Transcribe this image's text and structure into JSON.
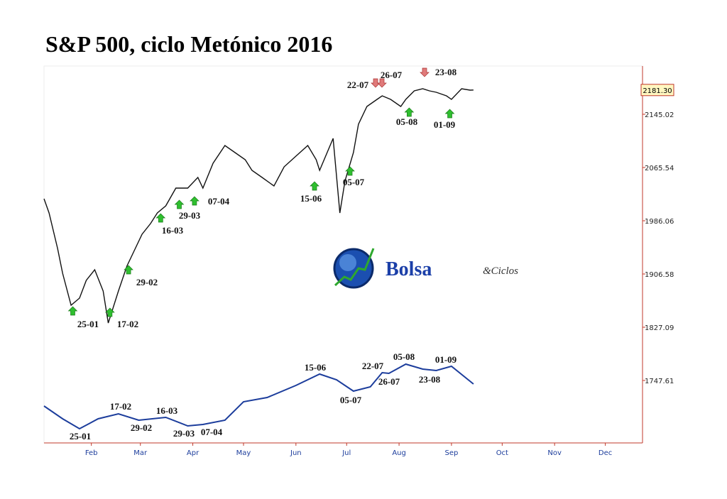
{
  "chart_data": {
    "type": "line",
    "title": "S&P 500, ciclo Metónico 2016",
    "xlim": [
      "2016-01-04",
      "2016-12-23"
    ],
    "xticks": [
      {
        "value": "2016-02-01",
        "label": "Feb"
      },
      {
        "value": "2016-03-01",
        "label": "Mar"
      },
      {
        "value": "2016-04-01",
        "label": "Apr"
      },
      {
        "value": "2016-05-01",
        "label": "May"
      },
      {
        "value": "2016-06-01",
        "label": "Jun"
      },
      {
        "value": "2016-07-01",
        "label": "Jul"
      },
      {
        "value": "2016-08-01",
        "label": "Aug"
      },
      {
        "value": "2016-09-01",
        "label": "Sep"
      },
      {
        "value": "2016-10-01",
        "label": "Oct"
      },
      {
        "value": "2016-11-01",
        "label": "Nov"
      },
      {
        "value": "2016-12-01",
        "label": "Dec"
      }
    ],
    "ylim": [
      1654.35,
      2217.09
    ],
    "yticks": [
      1747.61,
      1827.09,
      1906.58,
      1986.06,
      2065.54,
      2145.02
    ],
    "series": [
      {
        "color": "#111111",
        "x": [
          "2016-01-04",
          "2016-01-07",
          "2016-01-12",
          "2016-01-15",
          "2016-01-20",
          "2016-01-25",
          "2016-01-29",
          "2016-02-03",
          "2016-02-08",
          "2016-02-11",
          "2016-02-17",
          "2016-02-22",
          "2016-02-26",
          "2016-03-02",
          "2016-03-07",
          "2016-03-11",
          "2016-03-16",
          "2016-03-22",
          "2016-03-29",
          "2016-04-04",
          "2016-04-07",
          "2016-04-13",
          "2016-04-20",
          "2016-04-26",
          "2016-05-02",
          "2016-05-06",
          "2016-05-12",
          "2016-05-19",
          "2016-05-25",
          "2016-06-01",
          "2016-06-08",
          "2016-06-13",
          "2016-06-15",
          "2016-06-23",
          "2016-06-27",
          "2016-06-30",
          "2016-07-05",
          "2016-07-08",
          "2016-07-13",
          "2016-07-19",
          "2016-07-22",
          "2016-07-27",
          "2016-08-02",
          "2016-08-05",
          "2016-08-10",
          "2016-08-15",
          "2016-08-19",
          "2016-08-23",
          "2016-08-29",
          "2016-09-01",
          "2016-09-07",
          "2016-09-12",
          "2016-09-14"
        ],
        "values": [
          2018.9,
          1997.7,
          1944.7,
          1907.6,
          1859.9,
          1870.5,
          1897.0,
          1912.9,
          1881.1,
          1833.3,
          1881.1,
          1918.2,
          1939.4,
          1965.9,
          1981.8,
          1997.7,
          2008.3,
          2034.8,
          2034.8,
          2050.7,
          2034.8,
          2071.9,
          2098.4,
          2087.8,
          2077.2,
          2061.3,
          2050.7,
          2038.0,
          2066.6,
          2082.5,
          2098.4,
          2077.2,
          2061.3,
          2109.0,
          1997.7,
          2045.4,
          2087.8,
          2130.2,
          2156.7,
          2167.3,
          2172.6,
          2167.3,
          2156.7,
          2167.3,
          2180.0,
          2183.2,
          2180.0,
          2177.9,
          2172.6,
          2167.3,
          2183.2,
          2181.1,
          2181.3
        ]
      },
      {
        "color": "#1c3d9c",
        "x": [
          "2016-01-04",
          "2016-01-15",
          "2016-01-25",
          "2016-02-05",
          "2016-02-17",
          "2016-02-29",
          "2016-03-16",
          "2016-03-29",
          "2016-04-07",
          "2016-04-20",
          "2016-05-01",
          "2016-05-15",
          "2016-06-01",
          "2016-06-15",
          "2016-06-25",
          "2016-07-05",
          "2016-07-15",
          "2016-07-22",
          "2016-07-26",
          "2016-08-05",
          "2016-08-15",
          "2016-08-23",
          "2016-09-01",
          "2016-09-14"
        ],
        "values": [
          1709.46,
          1690.38,
          1675.54,
          1690.38,
          1697.8,
          1688.26,
          1692.5,
          1679.78,
          1681.9,
          1688.26,
          1715.82,
          1722.17,
          1740.19,
          1757.15,
          1748.67,
          1731.71,
          1738.07,
          1759.27,
          1758.21,
          1771.99,
          1764.57,
          1762.45,
          1768.81,
          1742.31
        ]
      }
    ],
    "price_marker": {
      "value": 2181.3,
      "label": "2181.30"
    },
    "up_signals": [
      "25-01",
      "17-02",
      "29-02",
      "16-03",
      "29-03",
      "07-04",
      "15-06",
      "05-07",
      "05-08",
      "01-09"
    ],
    "down_signals": [
      "22-07",
      "26-07",
      "23-08"
    ],
    "cycle_labels": [
      "25-01",
      "17-02",
      "29-02",
      "16-03",
      "29-03",
      "07-04",
      "15-06",
      "05-07",
      "22-07",
      "26-07",
      "05-08",
      "23-08",
      "01-09"
    ],
    "logo": {
      "main": "Bolsa",
      "sub": "&Ciclos"
    }
  }
}
